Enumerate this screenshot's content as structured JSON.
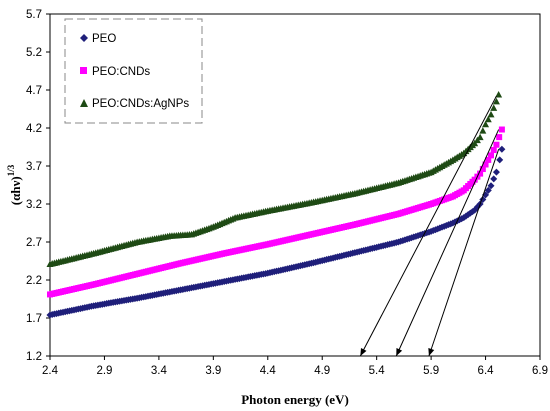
{
  "chart_data": {
    "type": "scatter",
    "title": "",
    "xlabel": "Photon energy (eV)",
    "ylabel": "(αhν)^1/3",
    "ylabel_main": "(αhν)",
    "ylabel_exp": "1/3",
    "xlim": [
      2.4,
      6.9
    ],
    "ylim": [
      1.2,
      5.7
    ],
    "x_ticks": [
      "2.4",
      "2.9",
      "3.4",
      "3.9",
      "4.4",
      "4.9",
      "5.4",
      "5.9",
      "6.4",
      "6.9"
    ],
    "y_ticks": [
      "1.2",
      "1.7",
      "2.2",
      "2.7",
      "3.2",
      "3.7",
      "4.2",
      "4.7",
      "5.2",
      "5.7"
    ],
    "grid": false,
    "legend_position": "top-left",
    "series": [
      {
        "name": "PEO",
        "color": "#1F1F7A",
        "marker": "diamond",
        "points": [
          [
            2.4,
            1.74
          ],
          [
            2.8,
            1.86
          ],
          [
            3.2,
            1.96
          ],
          [
            3.6,
            2.07
          ],
          [
            4.0,
            2.18
          ],
          [
            4.4,
            2.29
          ],
          [
            4.8,
            2.42
          ],
          [
            5.2,
            2.56
          ],
          [
            5.6,
            2.7
          ],
          [
            5.9,
            2.84
          ],
          [
            6.1,
            2.95
          ],
          [
            6.2,
            3.02
          ],
          [
            6.3,
            3.12
          ],
          [
            6.35,
            3.2
          ],
          [
            6.4,
            3.32
          ],
          [
            6.45,
            3.44
          ],
          [
            6.5,
            3.62
          ],
          [
            6.53,
            3.78
          ],
          [
            6.55,
            3.92
          ]
        ]
      },
      {
        "name": "PEO:CNDs",
        "color": "#FF00FF",
        "marker": "square",
        "points": [
          [
            2.4,
            2.01
          ],
          [
            2.8,
            2.14
          ],
          [
            3.2,
            2.28
          ],
          [
            3.6,
            2.42
          ],
          [
            4.0,
            2.55
          ],
          [
            4.4,
            2.67
          ],
          [
            4.8,
            2.8
          ],
          [
            5.2,
            2.93
          ],
          [
            5.6,
            3.07
          ],
          [
            5.9,
            3.2
          ],
          [
            6.1,
            3.3
          ],
          [
            6.2,
            3.38
          ],
          [
            6.3,
            3.52
          ],
          [
            6.35,
            3.6
          ],
          [
            6.4,
            3.72
          ],
          [
            6.45,
            3.84
          ],
          [
            6.5,
            3.98
          ],
          [
            6.55,
            4.18
          ]
        ]
      },
      {
        "name": "PEO:CNDs:AgNPs",
        "color": "#1E4A14",
        "marker": "triangle",
        "points": [
          [
            2.4,
            2.41
          ],
          [
            2.8,
            2.55
          ],
          [
            3.2,
            2.7
          ],
          [
            3.5,
            2.78
          ],
          [
            3.7,
            2.8
          ],
          [
            3.9,
            2.9
          ],
          [
            4.1,
            3.02
          ],
          [
            4.4,
            3.11
          ],
          [
            4.8,
            3.22
          ],
          [
            5.2,
            3.34
          ],
          [
            5.6,
            3.48
          ],
          [
            5.9,
            3.62
          ],
          [
            6.1,
            3.78
          ],
          [
            6.2,
            3.87
          ],
          [
            6.3,
            4.0
          ],
          [
            6.35,
            4.08
          ],
          [
            6.4,
            4.25
          ],
          [
            6.45,
            4.38
          ],
          [
            6.5,
            4.55
          ],
          [
            6.52,
            4.64
          ]
        ]
      }
    ],
    "fit_lines": [
      {
        "from": [
          6.5,
          4.62
        ],
        "to": [
          5.25,
          1.2
        ]
      },
      {
        "from": [
          6.52,
          4.18
        ],
        "to": [
          5.58,
          1.2
        ]
      },
      {
        "from": [
          6.52,
          3.92
        ],
        "to": [
          5.88,
          1.2
        ]
      }
    ]
  }
}
